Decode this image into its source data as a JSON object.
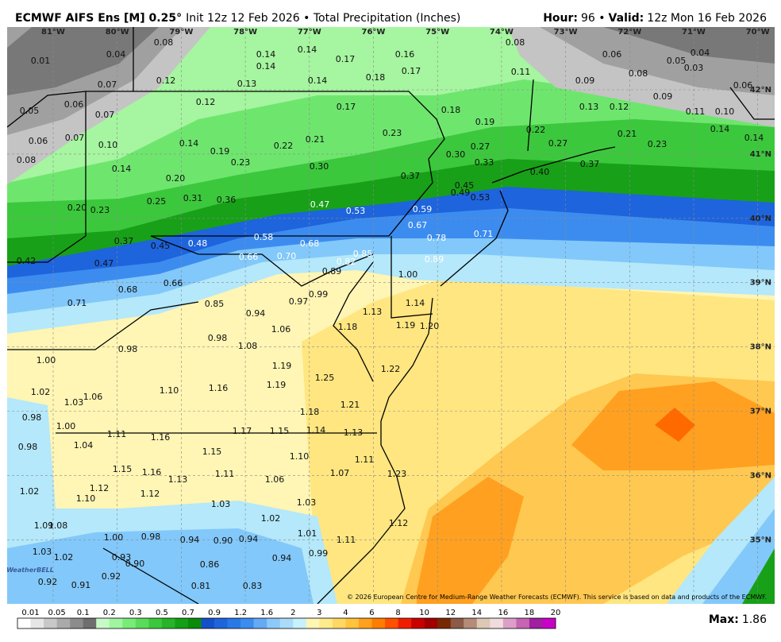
{
  "header": {
    "model": "ECMWF AIFS Ens [M] 0.25°",
    "description": "Init 12z 12 Feb 2026 • Total Precipitation (Inches)",
    "hour_label": "Hour:",
    "hour_value": "96 •",
    "valid_label": "Valid:",
    "valid_value": "12z Mon 16 Feb 2026"
  },
  "map": {
    "longitude_labels": [
      "81°W",
      "80°W",
      "79°W",
      "78°W",
      "77°W",
      "76°W",
      "75°W",
      "74°W",
      "73°W",
      "72°W",
      "71°W",
      "70°W"
    ],
    "latitude_labels": [
      "42°N",
      "41°N",
      "40°N",
      "39°N",
      "38°N",
      "37°N",
      "36°N",
      "35°N"
    ],
    "point_values": [
      "0.08",
      "0.04",
      "0.01",
      "0.14",
      "0.14",
      "0.17",
      "0.16",
      "0.08",
      "0.06",
      "0.05",
      "0.04",
      "0.14",
      "0.18",
      "0.17",
      "0.11",
      "0.08",
      "0.03",
      "0.07",
      "0.12",
      "0.13",
      "0.14",
      "0.09",
      "0.06",
      "0.06",
      "0.05",
      "0.07",
      "0.12",
      "0.17",
      "0.18",
      "0.13",
      "0.12",
      "0.09",
      "0.19",
      "0.11",
      "0.10",
      "0.06",
      "0.07",
      "0.10",
      "0.14",
      "0.19",
      "0.22",
      "0.21",
      "0.23",
      "0.22",
      "0.21",
      "0.14",
      "0.14",
      "0.27",
      "0.27",
      "0.23",
      "0.08",
      "0.14",
      "0.23",
      "0.30",
      "0.30",
      "0.33",
      "0.20",
      "0.37",
      "0.37",
      "0.40",
      "0.45",
      "0.49",
      "0.53",
      "0.20",
      "0.23",
      "0.25",
      "0.31",
      "0.36",
      "0.47",
      "0.53",
      "0.59",
      "0.67",
      "0.78",
      "0.71",
      "0.37",
      "0.45",
      "0.48",
      "0.58",
      "0.68",
      "0.89",
      "0.42",
      "0.47",
      "0.66",
      "0.70",
      "0.82",
      "0.85",
      "0.89",
      "1.00",
      "0.68",
      "0.66",
      "0.97",
      "0.99",
      "0.71",
      "0.85",
      "1.14",
      "0.94",
      "1.13",
      "1.19",
      "1.18",
      "1.06",
      "1.20",
      "0.98",
      "0.98",
      "1.08",
      "1.00",
      "1.19",
      "1.22",
      "1.25",
      "1.19",
      "1.02",
      "1.10",
      "1.16",
      "1.06",
      "1.03",
      "1.21",
      "1.18",
      "0.98",
      "1.00",
      "1.11",
      "1.16",
      "1.17",
      "1.15",
      "1.14",
      "1.13",
      "1.04",
      "0.98",
      "1.15",
      "1.10",
      "1.11",
      "1.15",
      "1.16",
      "1.13",
      "1.11",
      "1.06",
      "1.07",
      "1.23",
      "1.02",
      "1.12",
      "1.10",
      "1.12",
      "1.03",
      "1.03",
      "1.02",
      "1.09",
      "1.08",
      "1.12",
      "1.01",
      "1.00",
      "0.98",
      "0.94",
      "0.90",
      "0.94",
      "1.11",
      "1.03",
      "1.02",
      "0.93",
      "0.90",
      "0.94",
      "0.99",
      "0.86",
      "0.92",
      "0.92",
      "0.91",
      "0.81",
      "0.83"
    ]
  },
  "attribution": "© 2026 European Centre for Medium-Range Weather Forecasts (ECMWF). This service is based on data and products of the ECMWF.",
  "logo": "WeatherBELL",
  "colorbar": {
    "labels": [
      "0.01",
      "0.05",
      "0.1",
      "0.2",
      "0.3",
      "0.5",
      "0.7",
      "0.9",
      "1.2",
      "1.6",
      "2",
      "3",
      "4",
      "6",
      "8",
      "10",
      "12",
      "14",
      "16",
      "18",
      "20"
    ],
    "colors": [
      "#ffffff",
      "#e6e6e6",
      "#c8c8c8",
      "#aaaaaa",
      "#8c8c8c",
      "#6e6e6e",
      "#c8fac8",
      "#a0f5a0",
      "#78eb78",
      "#5adc5a",
      "#3cc83c",
      "#28b428",
      "#14a014",
      "#0a8c0a",
      "#1450c8",
      "#1e64dc",
      "#2878e6",
      "#3c8cf0",
      "#64aaf5",
      "#8cc8fa",
      "#aadcfa",
      "#c8f0ff",
      "#fff5b4",
      "#ffeb8c",
      "#ffd764",
      "#ffc33c",
      "#ffa01e",
      "#ff7d00",
      "#ff5000",
      "#f01e00",
      "#c80000",
      "#a00000",
      "#782800",
      "#8c5a46",
      "#b48c78",
      "#dcc8b4",
      "#f0dcdc",
      "#dca0c8",
      "#c864b4",
      "#a020a0",
      "#c800c8"
    ]
  },
  "max": {
    "label": "Max:",
    "value": "1.86"
  }
}
